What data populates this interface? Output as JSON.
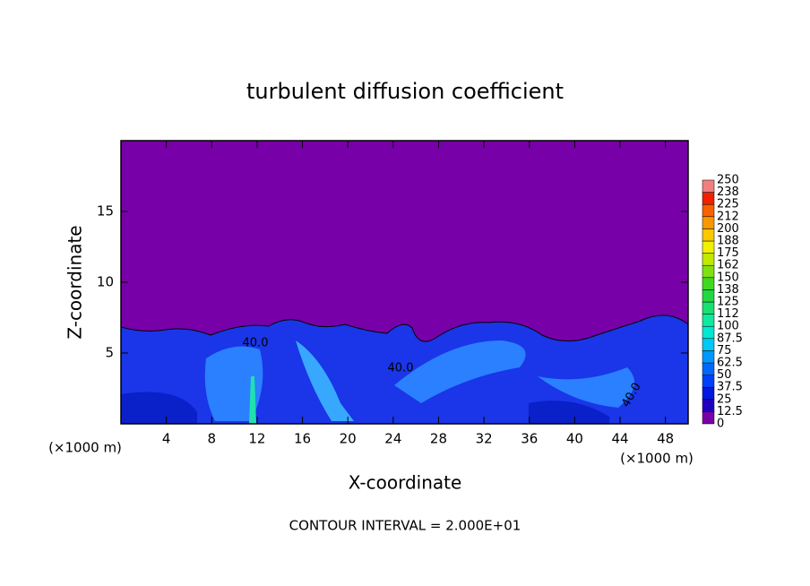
{
  "chart_data": {
    "type": "contour",
    "title": "turbulent diffusion coefficient",
    "xlabel": "X-coordinate",
    "ylabel": "Z-coordinate",
    "x_unit": "(×1000 m)",
    "footer": "CONTOUR INTERVAL = 2.000E+01",
    "xlim": [
      0,
      50
    ],
    "ylim": [
      0,
      20
    ],
    "xticks": [
      4,
      8,
      12,
      16,
      20,
      24,
      28,
      32,
      36,
      40,
      44,
      48
    ],
    "yticks": [
      5,
      10,
      15
    ],
    "contour_labels": [
      "40.0",
      "40.0",
      "40.0"
    ],
    "colorbar": {
      "levels": [
        0,
        12.5,
        25,
        37.5,
        50,
        62.5,
        75,
        87.5,
        100,
        {
          "value": 112.5,
          "label": "112"
        },
        125,
        {
          "value": 137.5,
          "label": "138"
        },
        150,
        {
          "value": 162.5,
          "label": "162"
        },
        175,
        {
          "value": 187.5,
          "label": "188"
        },
        200,
        {
          "value": 212.5,
          "label": "212"
        },
        225,
        {
          "value": 237.5,
          "label": "238"
        },
        250
      ],
      "colors": [
        "#7800a8",
        "#2000c0",
        "#0018e0",
        "#0040f8",
        "#0068ff",
        "#0098ff",
        "#00c8f8",
        "#00e8d0",
        "#10e8a0",
        "#18e070",
        "#20d840",
        "#40d820",
        "#80e010",
        "#c0e800",
        "#f0f000",
        "#f8c800",
        "#f89800",
        "#f86000",
        "#f02000",
        "#f08080"
      ]
    }
  }
}
